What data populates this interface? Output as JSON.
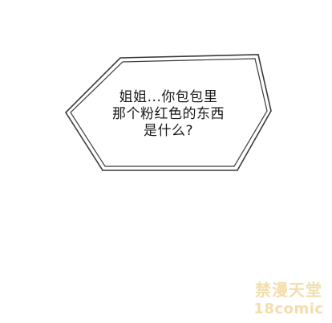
{
  "speech_bubble": {
    "lines": [
      "姐姐...你包包里",
      "那个粉红色的东西",
      "是什么?"
    ]
  },
  "watermark": {
    "top_text": "禁漫天堂",
    "bottom_text": "18comic"
  },
  "colors": {
    "background": "#ffffff",
    "bubble_stroke": "#3a3a3a",
    "text": "#1a1a1a",
    "watermark": "#e8c36a"
  }
}
